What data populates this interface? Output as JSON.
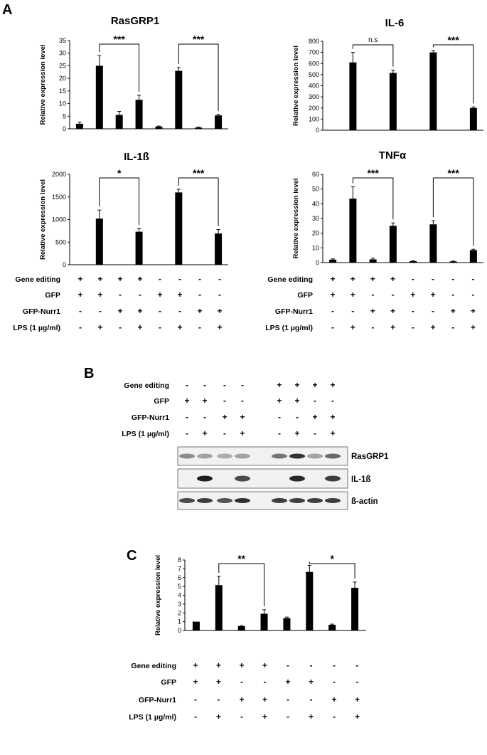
{
  "panel_letters": {
    "a": "A",
    "b": "B",
    "c": "C"
  },
  "condition_labels": [
    "Gene editing",
    "GFP",
    "GFP-Nurr1",
    "LPS (1 µg/ml)"
  ],
  "conditions_A": [
    [
      "+",
      "+",
      "+",
      "+",
      "-",
      "-",
      "-",
      "-"
    ],
    [
      "+",
      "+",
      "-",
      "-",
      "+",
      "+",
      "-",
      "-"
    ],
    [
      "-",
      "-",
      "+",
      "+",
      "-",
      "-",
      "+",
      "+"
    ],
    [
      "-",
      "+",
      "-",
      "+",
      "-",
      "+",
      "-",
      "+"
    ]
  ],
  "conditions_B": [
    [
      "-",
      "-",
      "-",
      "-",
      "+",
      "+",
      "+",
      "+"
    ],
    [
      "+",
      "+",
      "-",
      "-",
      "+",
      "+",
      "-",
      "-"
    ],
    [
      "-",
      "-",
      "+",
      "+",
      "-",
      "-",
      "+",
      "+"
    ],
    [
      "-",
      "+",
      "-",
      "+",
      "-",
      "+",
      "-",
      "+"
    ]
  ],
  "blot_labels": [
    "RasGRP1",
    "IL-1ß",
    "ß-actin"
  ],
  "chart_data": [
    {
      "type": "bar",
      "panel": "A",
      "title": "RasGRP1",
      "ylabel": "Relative expression level",
      "ylim": [
        0,
        35
      ],
      "yticks": [
        0,
        5,
        10,
        15,
        20,
        25,
        30,
        35
      ],
      "values": [
        2.0,
        25.0,
        5.5,
        11.5,
        0.9,
        23.0,
        0.5,
        5.3
      ],
      "errors": [
        0.6,
        4.0,
        1.4,
        1.8,
        0.2,
        1.3,
        0.2,
        0.4
      ],
      "significance": [
        {
          "from": 1,
          "to": 3,
          "label": "***"
        },
        {
          "from": 5,
          "to": 7,
          "label": "***"
        }
      ]
    },
    {
      "type": "bar",
      "panel": "A",
      "title": "IL-6",
      "ylabel": "Relative expression level",
      "ylim": [
        0,
        800
      ],
      "yticks": [
        0,
        100,
        200,
        300,
        400,
        500,
        600,
        700,
        800
      ],
      "values": [
        0,
        610,
        3,
        515,
        0,
        700,
        0,
        200
      ],
      "errors": [
        0,
        90,
        0,
        25,
        0,
        15,
        0,
        10
      ],
      "significance": [
        {
          "from": 1,
          "to": 3,
          "label": "n.s"
        },
        {
          "from": 5,
          "to": 7,
          "label": "***"
        }
      ]
    },
    {
      "type": "bar",
      "panel": "A",
      "title": "IL-1ß",
      "ylabel": "Relative expression level",
      "ylim": [
        0,
        2000
      ],
      "yticks": [
        0,
        500,
        1000,
        1500,
        2000
      ],
      "values": [
        0,
        1020,
        0,
        730,
        0,
        1600,
        0,
        690
      ],
      "errors": [
        0,
        190,
        0,
        70,
        0,
        70,
        0,
        90
      ],
      "significance": [
        {
          "from": 1,
          "to": 3,
          "label": "*"
        },
        {
          "from": 5,
          "to": 7,
          "label": "***"
        }
      ]
    },
    {
      "type": "bar",
      "panel": "A",
      "title": "TNFα",
      "ylabel": "Relative expression level",
      "ylim": [
        0,
        60
      ],
      "yticks": [
        0,
        10,
        20,
        30,
        40,
        50,
        60
      ],
      "values": [
        2.0,
        43.5,
        2.2,
        25.0,
        1.0,
        26.0,
        0.8,
        8.5
      ],
      "errors": [
        0.5,
        8.0,
        0.8,
        2.0,
        0.2,
        2.5,
        0.2,
        0.6
      ],
      "significance": [
        {
          "from": 1,
          "to": 3,
          "label": "***"
        },
        {
          "from": 5,
          "to": 7,
          "label": "***"
        }
      ]
    },
    {
      "type": "bar",
      "panel": "C",
      "title": "",
      "ylabel": "Relative expression level",
      "ylim": [
        0,
        8
      ],
      "yticks": [
        0,
        1,
        2,
        3,
        4,
        5,
        6,
        7,
        8
      ],
      "values": [
        1.0,
        5.15,
        0.5,
        1.9,
        1.4,
        6.65,
        0.65,
        4.85
      ],
      "errors": [
        0,
        1.0,
        0.05,
        0.45,
        0.12,
        0.75,
        0.07,
        0.65
      ],
      "significance": [
        {
          "from": 1,
          "to": 3,
          "label": "**"
        },
        {
          "from": 5,
          "to": 7,
          "label": "*"
        }
      ]
    }
  ]
}
